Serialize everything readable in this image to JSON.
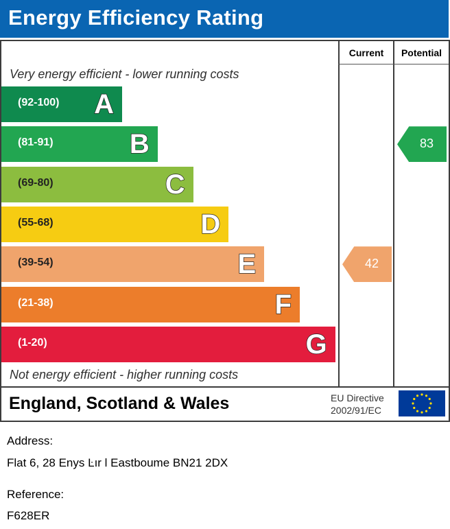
{
  "header": {
    "title": "Energy Efficiency Rating"
  },
  "columns": {
    "current": "Current",
    "potential": "Potential"
  },
  "notes": {
    "top": "Very energy efficient - lower running costs",
    "bottom": "Not energy efficient - higher running costs"
  },
  "chart_data": {
    "type": "bar",
    "categories": [
      "A",
      "B",
      "C",
      "D",
      "E",
      "F",
      "G"
    ],
    "ranges": [
      "(92-100)",
      "(81-91)",
      "(69-80)",
      "(55-68)",
      "(39-54)",
      "(21-38)",
      "(1-20)"
    ],
    "colors": [
      "#0f8a4e",
      "#22a651",
      "#8cbd3f",
      "#f6cc12",
      "#f0a46c",
      "#ec7d2b",
      "#e31d3d"
    ],
    "current": {
      "value": 42,
      "band": "E",
      "color": "#f0a46c"
    },
    "potential": {
      "value": 83,
      "band": "B",
      "color": "#22a651"
    }
  },
  "footer": {
    "country": "England, Scotland & Wales",
    "directive_line1": "EU Directive",
    "directive_line2": "2002/91/EC"
  },
  "info": {
    "address_label": "Address:",
    "address_value": "Flat 6, 28 Enys Ŀır l  Eastboume BN21 2DX",
    "reference_label": "Reference:",
    "reference_value": "F628ER"
  }
}
